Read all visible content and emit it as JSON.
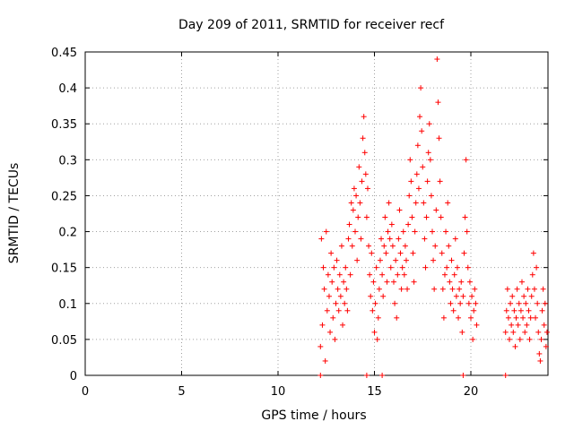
{
  "chart_data": {
    "type": "scatter",
    "title": "Day 209 of 2011, SRMTID for receiver recf",
    "xlabel": "GPS time / hours",
    "ylabel": "SRMTID / TECUs",
    "xlim": [
      0,
      24
    ],
    "ylim": [
      0,
      0.45
    ],
    "x_ticks": [
      0,
      5,
      10,
      15,
      20
    ],
    "x_tick_labels": [
      "0",
      "5",
      "10",
      "15",
      "20"
    ],
    "y_ticks": [
      0,
      0.05,
      0.1,
      0.15,
      0.2,
      0.25,
      0.3,
      0.35,
      0.4,
      0.45
    ],
    "y_tick_labels": [
      "0",
      "0.05",
      "0.1",
      "0.15",
      "0.2",
      "0.25",
      "0.3",
      "0.35",
      "0.4",
      "0.45"
    ],
    "grid": true,
    "marker": "+",
    "color": "#ff0000",
    "series": [
      {
        "name": "SRMTID",
        "points": [
          [
            12.2,
            0.04
          ],
          [
            12.25,
            0.19
          ],
          [
            12.3,
            0.07
          ],
          [
            12.35,
            0.15
          ],
          [
            12.4,
            0.12
          ],
          [
            12.45,
            0.02
          ],
          [
            12.5,
            0.2
          ],
          [
            12.55,
            0.09
          ],
          [
            12.6,
            0.14
          ],
          [
            12.65,
            0.11
          ],
          [
            12.7,
            0.06
          ],
          [
            12.75,
            0.17
          ],
          [
            12.8,
            0.13
          ],
          [
            12.85,
            0.08
          ],
          [
            12.9,
            0.15
          ],
          [
            12.95,
            0.05
          ],
          [
            13.0,
            0.1
          ],
          [
            13.05,
            0.16
          ],
          [
            13.1,
            0.12
          ],
          [
            13.15,
            0.09
          ],
          [
            13.2,
            0.14
          ],
          [
            13.25,
            0.11
          ],
          [
            13.3,
            0.18
          ],
          [
            13.35,
            0.07
          ],
          [
            13.4,
            0.13
          ],
          [
            13.45,
            0.1
          ],
          [
            13.5,
            0.15
          ],
          [
            13.55,
            0.12
          ],
          [
            13.6,
            0.09
          ],
          [
            13.65,
            0.19
          ],
          [
            13.7,
            0.21
          ],
          [
            13.75,
            0.14
          ],
          [
            13.8,
            0.24
          ],
          [
            13.85,
            0.18
          ],
          [
            13.9,
            0.23
          ],
          [
            13.95,
            0.26
          ],
          [
            14.0,
            0.2
          ],
          [
            14.05,
            0.25
          ],
          [
            14.1,
            0.16
          ],
          [
            14.15,
            0.22
          ],
          [
            14.2,
            0.29
          ],
          [
            14.25,
            0.24
          ],
          [
            14.3,
            0.19
          ],
          [
            14.35,
            0.27
          ],
          [
            14.4,
            0.33
          ],
          [
            14.45,
            0.36
          ],
          [
            14.5,
            0.31
          ],
          [
            14.55,
            0.28
          ],
          [
            14.6,
            0.22
          ],
          [
            14.65,
            0.26
          ],
          [
            14.7,
            0.18
          ],
          [
            14.75,
            0.14
          ],
          [
            14.8,
            0.11
          ],
          [
            14.85,
            0.17
          ],
          [
            14.9,
            0.09
          ],
          [
            14.95,
            0.13
          ],
          [
            15.0,
            0.06
          ],
          [
            15.05,
            0.1
          ],
          [
            15.1,
            0.15
          ],
          [
            15.15,
            0.05
          ],
          [
            15.2,
            0.08
          ],
          [
            15.25,
            0.12
          ],
          [
            15.3,
            0.16
          ],
          [
            15.35,
            0.19
          ],
          [
            15.4,
            0.14
          ],
          [
            15.45,
            0.11
          ],
          [
            15.5,
            0.18
          ],
          [
            15.55,
            0.22
          ],
          [
            15.6,
            0.17
          ],
          [
            15.65,
            0.13
          ],
          [
            15.7,
            0.2
          ],
          [
            15.75,
            0.24
          ],
          [
            15.8,
            0.19
          ],
          [
            15.85,
            0.15
          ],
          [
            15.9,
            0.21
          ],
          [
            15.95,
            0.18
          ],
          [
            16.0,
            0.13
          ],
          [
            16.05,
            0.1
          ],
          [
            16.1,
            0.16
          ],
          [
            16.15,
            0.08
          ],
          [
            16.2,
            0.14
          ],
          [
            16.25,
            0.19
          ],
          [
            16.3,
            0.23
          ],
          [
            16.35,
            0.17
          ],
          [
            16.4,
            0.12
          ],
          [
            16.45,
            0.15
          ],
          [
            16.5,
            0.2
          ],
          [
            16.55,
            0.14
          ],
          [
            16.6,
            0.18
          ],
          [
            16.65,
            0.16
          ],
          [
            16.7,
            0.12
          ],
          [
            16.75,
            0.21
          ],
          [
            16.8,
            0.25
          ],
          [
            16.85,
            0.3
          ],
          [
            16.9,
            0.27
          ],
          [
            16.95,
            0.22
          ],
          [
            17.0,
            0.17
          ],
          [
            17.05,
            0.13
          ],
          [
            17.1,
            0.2
          ],
          [
            17.15,
            0.24
          ],
          [
            17.2,
            0.28
          ],
          [
            17.25,
            0.32
          ],
          [
            17.3,
            0.26
          ],
          [
            17.35,
            0.36
          ],
          [
            17.4,
            0.4
          ],
          [
            17.45,
            0.34
          ],
          [
            17.5,
            0.29
          ],
          [
            17.55,
            0.24
          ],
          [
            17.6,
            0.19
          ],
          [
            17.65,
            0.15
          ],
          [
            17.7,
            0.22
          ],
          [
            17.75,
            0.27
          ],
          [
            17.8,
            0.31
          ],
          [
            17.85,
            0.35
          ],
          [
            17.9,
            0.3
          ],
          [
            17.95,
            0.25
          ],
          [
            18.0,
            0.2
          ],
          [
            18.05,
            0.16
          ],
          [
            18.1,
            0.12
          ],
          [
            18.15,
            0.18
          ],
          [
            18.2,
            0.23
          ],
          [
            18.25,
            0.44
          ],
          [
            18.3,
            0.38
          ],
          [
            18.35,
            0.33
          ],
          [
            18.4,
            0.27
          ],
          [
            18.45,
            0.22
          ],
          [
            18.5,
            0.17
          ],
          [
            18.55,
            0.12
          ],
          [
            18.6,
            0.08
          ],
          [
            18.65,
            0.14
          ],
          [
            18.7,
            0.2
          ],
          [
            18.75,
            0.15
          ],
          [
            18.8,
            0.24
          ],
          [
            18.85,
            0.18
          ],
          [
            18.9,
            0.13
          ],
          [
            18.95,
            0.1
          ],
          [
            19.0,
            0.16
          ],
          [
            19.05,
            0.12
          ],
          [
            19.1,
            0.09
          ],
          [
            19.15,
            0.14
          ],
          [
            19.2,
            0.19
          ],
          [
            19.25,
            0.11
          ],
          [
            19.3,
            0.15
          ],
          [
            19.35,
            0.08
          ],
          [
            19.4,
            0.12
          ],
          [
            19.45,
            0.1
          ],
          [
            19.5,
            0.13
          ],
          [
            19.55,
            0.06
          ],
          [
            19.6,
            0.11
          ],
          [
            19.65,
            0.17
          ],
          [
            19.7,
            0.22
          ],
          [
            19.75,
            0.3
          ],
          [
            19.8,
            0.2
          ],
          [
            19.85,
            0.15
          ],
          [
            19.9,
            0.1
          ],
          [
            19.95,
            0.13
          ],
          [
            20.0,
            0.08
          ],
          [
            20.05,
            0.11
          ],
          [
            20.1,
            0.05
          ],
          [
            20.15,
            0.09
          ],
          [
            20.2,
            0.12
          ],
          [
            20.25,
            0.1
          ],
          [
            20.3,
            0.07
          ],
          [
            21.8,
            0.06
          ],
          [
            21.85,
            0.09
          ],
          [
            21.9,
            0.12
          ],
          [
            21.95,
            0.08
          ],
          [
            22.0,
            0.05
          ],
          [
            22.05,
            0.1
          ],
          [
            22.1,
            0.07
          ],
          [
            22.15,
            0.11
          ],
          [
            22.2,
            0.06
          ],
          [
            22.25,
            0.09
          ],
          [
            22.3,
            0.04
          ],
          [
            22.35,
            0.08
          ],
          [
            22.4,
            0.12
          ],
          [
            22.45,
            0.07
          ],
          [
            22.5,
            0.1
          ],
          [
            22.55,
            0.05
          ],
          [
            22.6,
            0.09
          ],
          [
            22.65,
            0.13
          ],
          [
            22.7,
            0.08
          ],
          [
            22.75,
            0.11
          ],
          [
            22.8,
            0.06
          ],
          [
            22.85,
            0.1
          ],
          [
            22.9,
            0.07
          ],
          [
            22.95,
            0.12
          ],
          [
            23.0,
            0.09
          ],
          [
            23.05,
            0.05
          ],
          [
            23.1,
            0.08
          ],
          [
            23.15,
            0.11
          ],
          [
            23.2,
            0.14
          ],
          [
            23.25,
            0.17
          ],
          [
            23.3,
            0.12
          ],
          [
            23.35,
            0.08
          ],
          [
            23.4,
            0.15
          ],
          [
            23.45,
            0.1
          ],
          [
            23.5,
            0.06
          ],
          [
            23.55,
            0.03
          ],
          [
            23.6,
            0.02
          ],
          [
            23.65,
            0.05
          ],
          [
            23.7,
            0.09
          ],
          [
            23.75,
            0.12
          ],
          [
            23.8,
            0.07
          ],
          [
            23.85,
            0.1
          ],
          [
            23.9,
            0.04
          ],
          [
            23.95,
            0.06
          ],
          [
            12.2,
            0
          ],
          [
            14.6,
            0
          ],
          [
            15.4,
            0
          ],
          [
            19.6,
            0
          ],
          [
            21.8,
            0
          ]
        ]
      }
    ]
  }
}
